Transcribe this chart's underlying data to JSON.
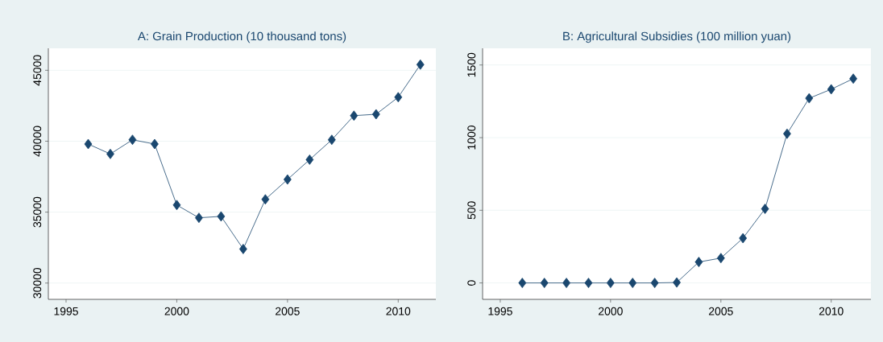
{
  "chart_data": [
    {
      "type": "line",
      "title": "A: Grain Production (10 thousand tons)",
      "color": "#1a476f",
      "marker": "diamond",
      "grid": "y",
      "x": [
        1996,
        1997,
        1998,
        1999,
        2000,
        2001,
        2002,
        2003,
        2004,
        2005,
        2006,
        2007,
        2008,
        2009,
        2010,
        2011
      ],
      "values": [
        39800,
        39100,
        40100,
        39800,
        35500,
        34600,
        34700,
        32400,
        35900,
        37300,
        38700,
        40100,
        41800,
        41900,
        43100,
        45400
      ],
      "xlim": [
        1994.2,
        2011.7
      ],
      "ylim": [
        28850,
        46550
      ],
      "xticks": [
        1995,
        2000,
        2005,
        2010
      ],
      "yticks": [
        30000,
        35000,
        40000,
        45000
      ]
    },
    {
      "type": "line",
      "title": "B: Agricultural Subsidies (100 million yuan)",
      "color": "#1a476f",
      "marker": "diamond",
      "grid": "y",
      "x": [
        1996,
        1997,
        1998,
        1999,
        2000,
        2001,
        2002,
        2003,
        2004,
        2005,
        2006,
        2007,
        2008,
        2009,
        2010,
        2011
      ],
      "values": [
        0,
        0,
        0,
        0,
        0,
        0,
        0,
        3,
        144,
        171,
        308,
        510,
        1027,
        1271,
        1333,
        1406
      ],
      "xlim": [
        1994.2,
        2011.8
      ],
      "ylim": [
        -113,
        1615
      ],
      "xticks": [
        1995,
        2000,
        2005,
        2010
      ],
      "yticks": [
        0,
        500,
        1000,
        1500
      ]
    }
  ]
}
